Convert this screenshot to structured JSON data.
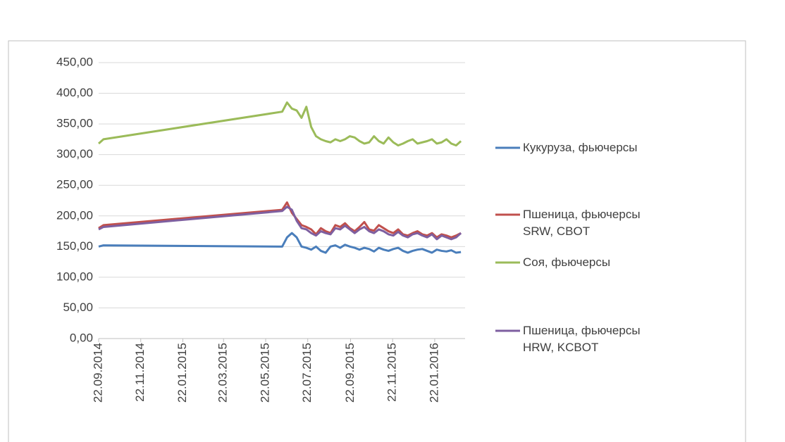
{
  "chart_data": {
    "type": "line",
    "x": [
      "22.09.2014",
      "29.09.2014",
      "15.06.2015",
      "22.06.2015",
      "29.06.2015",
      "06.07.2015",
      "13.07.2015",
      "20.07.2015",
      "27.07.2015",
      "03.08.2015",
      "10.08.2015",
      "17.08.2015",
      "24.08.2015",
      "31.08.2015",
      "07.09.2015",
      "14.09.2015",
      "21.09.2015",
      "28.09.2015",
      "05.10.2015",
      "12.10.2015",
      "19.10.2015",
      "26.10.2015",
      "02.11.2015",
      "09.11.2015",
      "16.11.2015",
      "23.11.2015",
      "30.11.2015",
      "07.12.2015",
      "14.12.2015",
      "21.12.2015",
      "28.12.2015",
      "04.01.2016",
      "11.01.2016",
      "18.01.2016",
      "25.01.2016",
      "01.02.2016",
      "08.02.2016",
      "15.02.2016",
      "22.02.2016",
      "29.02.2016"
    ],
    "series": [
      {
        "name": "Кукуруза, фьючерсы",
        "color": "#4a7ebb",
        "values": [
          150,
          152,
          150,
          165,
          172,
          165,
          150,
          148,
          145,
          150,
          143,
          140,
          150,
          152,
          148,
          153,
          150,
          148,
          145,
          148,
          146,
          142,
          148,
          145,
          143,
          146,
          148,
          143,
          140,
          143,
          145,
          146,
          143,
          140,
          145,
          143,
          142,
          144,
          140,
          141
        ]
      },
      {
        "name": "Пшеница, фьючерсы SRW, CBOT",
        "color": "#c0504d",
        "values": [
          180,
          185,
          210,
          222,
          205,
          195,
          185,
          182,
          178,
          170,
          180,
          175,
          172,
          185,
          182,
          188,
          180,
          175,
          182,
          190,
          178,
          176,
          185,
          180,
          175,
          172,
          178,
          170,
          168,
          172,
          175,
          170,
          168,
          172,
          165,
          170,
          168,
          165,
          168,
          172
        ]
      },
      {
        "name": "Соя, фьючерсы",
        "color": "#9bbb59",
        "values": [
          318,
          325,
          370,
          385,
          375,
          372,
          360,
          378,
          345,
          330,
          325,
          322,
          320,
          325,
          322,
          325,
          330,
          328,
          322,
          318,
          320,
          330,
          322,
          318,
          328,
          320,
          315,
          318,
          322,
          325,
          318,
          320,
          322,
          325,
          318,
          320,
          325,
          318,
          315,
          322
        ]
      },
      {
        "name": "Пшеница, фьючерсы HRW, KCBOT",
        "color": "#7e5fa0",
        "values": [
          178,
          182,
          208,
          215,
          210,
          192,
          180,
          178,
          172,
          168,
          175,
          172,
          170,
          180,
          178,
          184,
          178,
          172,
          178,
          182,
          175,
          172,
          178,
          175,
          170,
          168,
          174,
          168,
          165,
          170,
          172,
          168,
          165,
          170,
          162,
          168,
          165,
          162,
          165,
          172
        ]
      }
    ],
    "xlim": [
      "22.09.2014",
      "06.03.2016"
    ],
    "xticks": [
      "22.09.2014",
      "22.11.2014",
      "22.01.2015",
      "22.03.2015",
      "22.05.2015",
      "22.07.2015",
      "22.09.2015",
      "22.11.2015",
      "22.01.2016"
    ],
    "ylim": [
      0,
      450
    ],
    "yticks": [
      {
        "value": 0,
        "label": "0,00"
      },
      {
        "value": 50,
        "label": "50,00"
      },
      {
        "value": 100,
        "label": "100,00"
      },
      {
        "value": 150,
        "label": "150,00"
      },
      {
        "value": 200,
        "label": "200,00"
      },
      {
        "value": 250,
        "label": "250,00"
      },
      {
        "value": 300,
        "label": "300,00"
      },
      {
        "value": 350,
        "label": "350,00"
      },
      {
        "value": 400,
        "label": "400,00"
      },
      {
        "value": 450,
        "label": "450,00"
      }
    ],
    "grid": true,
    "legend": "right"
  }
}
